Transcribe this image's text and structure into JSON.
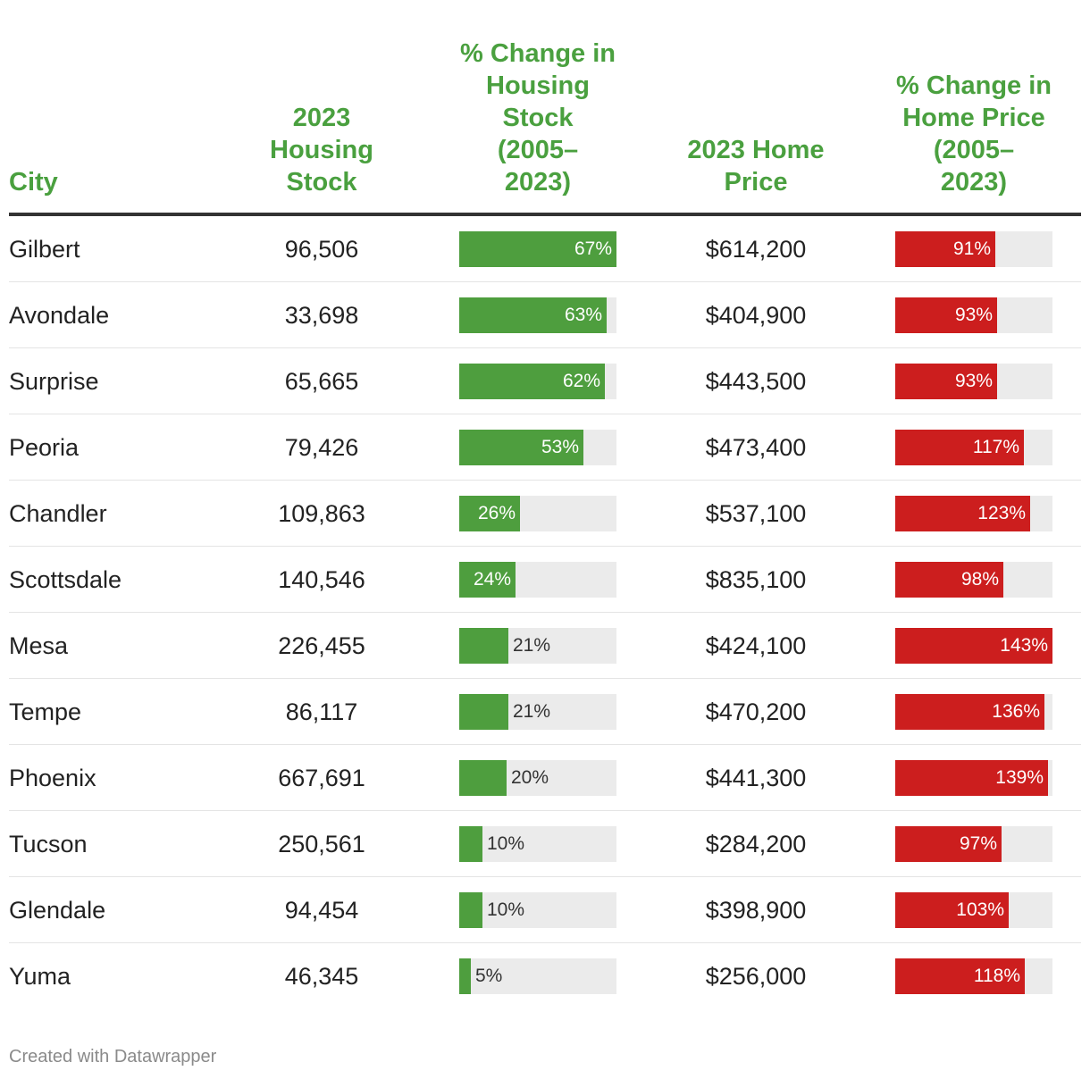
{
  "chart_data": {
    "type": "table",
    "columns": {
      "city": "City",
      "stock": "2023 Housing Stock",
      "stock_change": "% Change in Housing Stock (2005–2023)",
      "price": "2023 Home Price",
      "price_change": "% Change in Home Price (2005–2023)"
    },
    "stock_change_max": 67,
    "price_change_max": 143,
    "colors": {
      "header": "#4aa03f",
      "stock_bar": "#4e9e3e",
      "price_bar": "#cc1e1e",
      "track": "#ebebeb"
    },
    "rows": [
      {
        "city": "Gilbert",
        "stock": "96,506",
        "stock_change": 67,
        "stock_change_label": "67%",
        "price": "$614,200",
        "price_change": 91,
        "price_change_label": "91%"
      },
      {
        "city": "Avondale",
        "stock": "33,698",
        "stock_change": 63,
        "stock_change_label": "63%",
        "price": "$404,900",
        "price_change": 93,
        "price_change_label": "93%"
      },
      {
        "city": "Surprise",
        "stock": "65,665",
        "stock_change": 62,
        "stock_change_label": "62%",
        "price": "$443,500",
        "price_change": 93,
        "price_change_label": "93%"
      },
      {
        "city": "Peoria",
        "stock": "79,426",
        "stock_change": 53,
        "stock_change_label": "53%",
        "price": "$473,400",
        "price_change": 117,
        "price_change_label": "117%"
      },
      {
        "city": "Chandler",
        "stock": "109,863",
        "stock_change": 26,
        "stock_change_label": "26%",
        "price": "$537,100",
        "price_change": 123,
        "price_change_label": "123%"
      },
      {
        "city": "Scottsdale",
        "stock": "140,546",
        "stock_change": 24,
        "stock_change_label": "24%",
        "price": "$835,100",
        "price_change": 98,
        "price_change_label": "98%"
      },
      {
        "city": "Mesa",
        "stock": "226,455",
        "stock_change": 21,
        "stock_change_label": "21%",
        "price": "$424,100",
        "price_change": 143,
        "price_change_label": "143%"
      },
      {
        "city": "Tempe",
        "stock": "86,117",
        "stock_change": 21,
        "stock_change_label": "21%",
        "price": "$470,200",
        "price_change": 136,
        "price_change_label": "136%"
      },
      {
        "city": "Phoenix",
        "stock": "667,691",
        "stock_change": 20,
        "stock_change_label": "20%",
        "price": "$441,300",
        "price_change": 139,
        "price_change_label": "139%"
      },
      {
        "city": "Tucson",
        "stock": "250,561",
        "stock_change": 10,
        "stock_change_label": "10%",
        "price": "$284,200",
        "price_change": 97,
        "price_change_label": "97%"
      },
      {
        "city": "Glendale",
        "stock": "94,454",
        "stock_change": 10,
        "stock_change_label": "10%",
        "price": "$398,900",
        "price_change": 103,
        "price_change_label": "103%"
      },
      {
        "city": "Yuma",
        "stock": "46,345",
        "stock_change": 5,
        "stock_change_label": "5%",
        "price": "$256,000",
        "price_change": 118,
        "price_change_label": "118%"
      }
    ]
  },
  "header": {
    "city": "City",
    "stock_lines": [
      "2023",
      "Housing",
      "Stock"
    ],
    "stock_change_lines": [
      "% Change in",
      "Housing",
      "Stock",
      "(2005–",
      "2023)"
    ],
    "price_lines": [
      "2023 Home",
      "Price"
    ],
    "price_change_lines": [
      "% Change in",
      "Home Price",
      "(2005–",
      "2023)"
    ]
  },
  "footer": {
    "credit": "Created with Datawrapper"
  }
}
